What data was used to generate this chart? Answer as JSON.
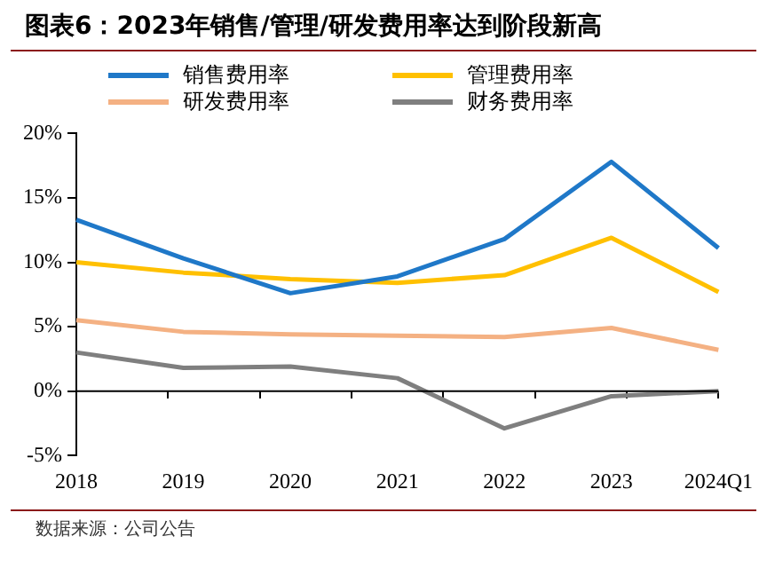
{
  "chart_data": {
    "type": "line",
    "title": "图表6：2023年销售/管理/研发费用率达到阶段新高",
    "categories": [
      "2018",
      "2019",
      "2020",
      "2021",
      "2022",
      "2023",
      "2024Q1"
    ],
    "series": [
      {
        "name": "销售费用率",
        "color": "#1f78c8",
        "values": [
          13.3,
          10.3,
          7.6,
          8.9,
          11.8,
          17.8,
          11.1
        ]
      },
      {
        "name": "管理费用率",
        "color": "#ffc000",
        "values": [
          10.0,
          9.2,
          8.7,
          8.4,
          9.0,
          11.9,
          7.7
        ]
      },
      {
        "name": "研发费用率",
        "color": "#f4b183",
        "values": [
          5.5,
          4.6,
          4.4,
          4.3,
          4.2,
          4.9,
          3.2
        ]
      },
      {
        "name": "财务费用率",
        "color": "#7f7f7f",
        "values": [
          3.0,
          1.8,
          1.9,
          1.0,
          -2.9,
          -0.4,
          0.0
        ]
      }
    ],
    "ylim": [
      -5,
      20
    ],
    "yticks": [
      {
        "value": -5,
        "label": "-5%"
      },
      {
        "value": 0,
        "label": "0%"
      },
      {
        "value": 5,
        "label": "5%"
      },
      {
        "value": 10,
        "label": "10%"
      },
      {
        "value": 15,
        "label": "15%"
      },
      {
        "value": 20,
        "label": "20%"
      }
    ],
    "ref_lines": [
      {
        "axis": "y",
        "value": 0,
        "color": "#000000",
        "line_style": "solid"
      }
    ],
    "grid": false,
    "legend": "top",
    "marker": "none",
    "line_style": "solid",
    "annotations": [
      "数据来源：公司公告"
    ]
  }
}
